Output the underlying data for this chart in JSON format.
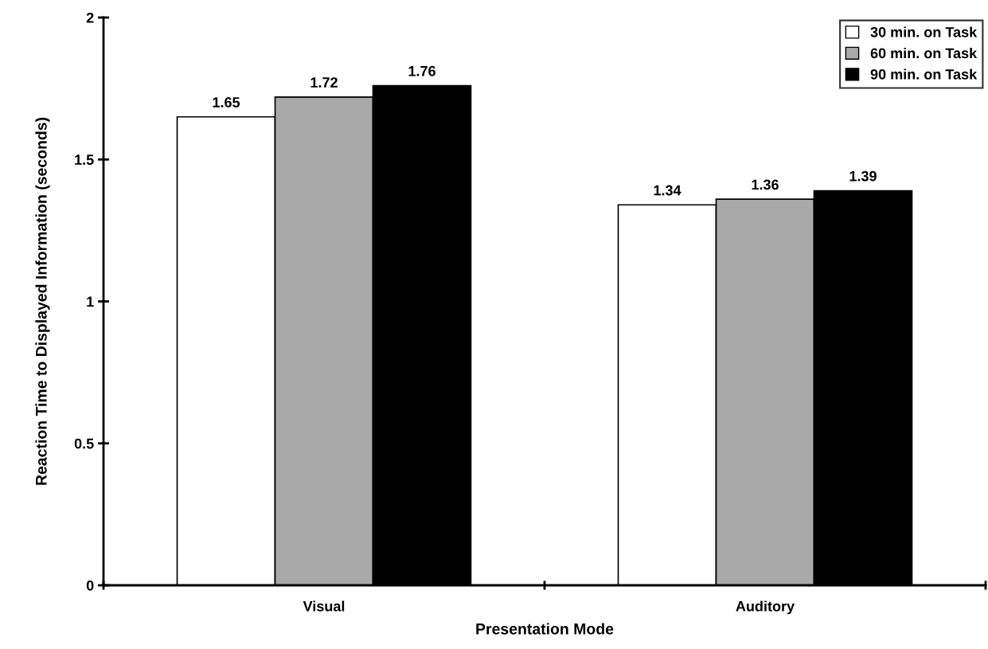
{
  "chart_data": {
    "type": "bar",
    "xlabel": "Presentation Mode",
    "ylabel": "Reaction Time to Displayed Information (seconds)",
    "categories": [
      "Visual",
      "Auditory"
    ],
    "series": [
      {
        "name": "30 min. on Task",
        "color": "#ffffff",
        "values": [
          1.65,
          1.34
        ]
      },
      {
        "name": "60 min. on Task",
        "color": "#a9a9a9",
        "values": [
          1.72,
          1.36
        ]
      },
      {
        "name": "90 min. on Task",
        "color": "#000000",
        "values": [
          1.76,
          1.39
        ]
      }
    ],
    "ylim": [
      0,
      2
    ],
    "yticks": [
      0,
      0.5,
      1,
      1.5,
      2
    ],
    "data_labels": true,
    "legend": "top right",
    "grid": false
  }
}
